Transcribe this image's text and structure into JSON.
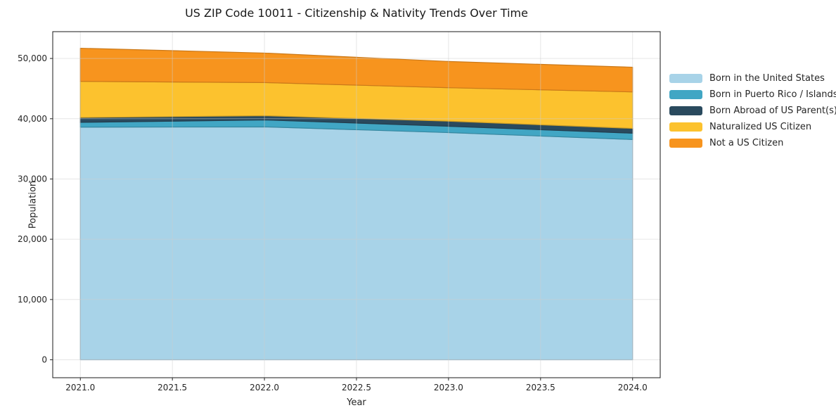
{
  "chart_data": {
    "type": "area",
    "stacked": true,
    "title": "US ZIP Code 10011 - Citizenship & Nativity Trends Over Time",
    "xlabel": "Year",
    "ylabel": "Population",
    "x": [
      2021,
      2022,
      2023,
      2024
    ],
    "series": [
      {
        "name": "Born in the United States",
        "color": "#a8d3e8",
        "values": [
          38600,
          38650,
          37700,
          36550
        ]
      },
      {
        "name": "Born in Puerto Rico / Islands",
        "color": "#41a6c4",
        "values": [
          800,
          1150,
          1050,
          1050
        ]
      },
      {
        "name": "Born Abroad of US Parent(s)",
        "color": "#2a4a5e",
        "values": [
          800,
          700,
          850,
          800
        ]
      },
      {
        "name": "Naturalized US Citizen",
        "color": "#fcc22e",
        "values": [
          6000,
          5500,
          5550,
          6050
        ]
      },
      {
        "name": "Not a US Citizen",
        "color": "#f7941e",
        "values": [
          5500,
          4900,
          4350,
          4100
        ]
      }
    ],
    "stacked_totals": [
      51700,
      50900,
      49500,
      48550
    ],
    "xlim": [
      2020.85,
      2024.15
    ],
    "ylim": [
      -2980,
      54450
    ],
    "xticks": [
      2021.0,
      2021.5,
      2022.0,
      2022.5,
      2023.0,
      2023.5,
      2024.0
    ],
    "xtick_labels": [
      "2021.0",
      "2021.5",
      "2022.0",
      "2022.5",
      "2023.0",
      "2023.5",
      "2024.0"
    ],
    "yticks": [
      0,
      10000,
      20000,
      30000,
      40000,
      50000
    ],
    "ytick_labels": [
      "0",
      "10,000",
      "20,000",
      "30,000",
      "40,000",
      "50,000"
    ],
    "grid": true,
    "legend_position": "outside-right"
  },
  "style": {
    "background": "#ffffff",
    "spine_color": "#1a1a1a",
    "grid_color": "rgba(205,205,205,0.5)",
    "tick_color": "#262626",
    "title_color": "#1a1a1a"
  }
}
